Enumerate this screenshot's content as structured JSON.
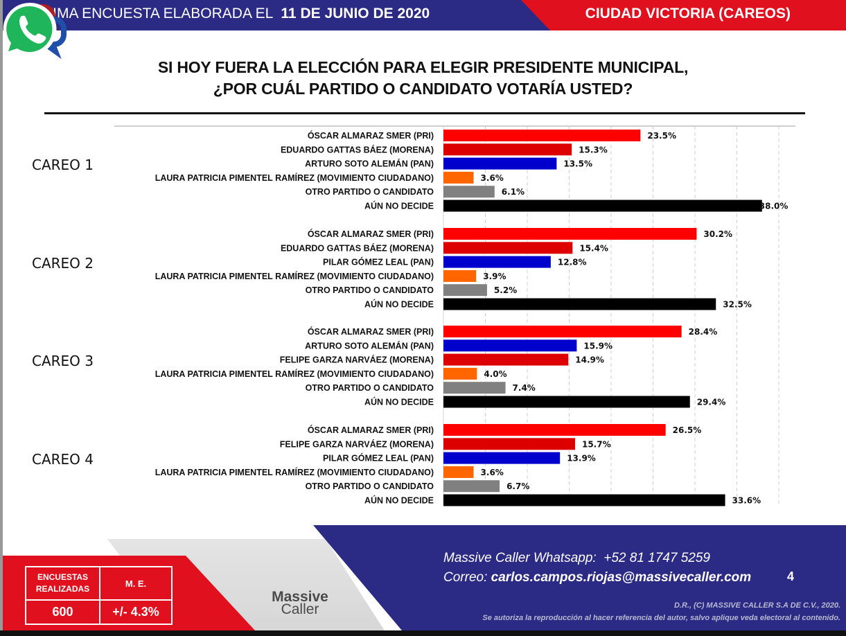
{
  "header": {
    "survey_prefix": "ÚLTIMA ENCUESTA ELABORADA EL",
    "survey_date": "11 DE JUNIO DE 2020",
    "location": "CIUDAD VICTORIA (CAREOS)",
    "colors": {
      "blue": "#2b2a84",
      "red": "#e0101e"
    }
  },
  "title": {
    "line1": "SI HOY FUERA LA ELECCIÓN PARA ELEGIR PRESIDENTE MUNICIPAL,",
    "line2": "¿POR CUÁL PARTIDO O CANDIDATO VOTARÍA USTED?"
  },
  "chart_data": {
    "type": "bar",
    "orientation": "horizontal",
    "title": "SI HOY FUERA LA ELECCIÓN PARA ELEGIR PRESIDENTE MUNICIPAL, ¿POR CUÁL PARTIDO O CANDIDATO VOTARÍA USTED?",
    "xlabel": "",
    "ylabel": "",
    "xlim": [
      0,
      42
    ],
    "grid": true,
    "grid_step": 5,
    "unit": "%",
    "party_colors": {
      "PRI": "#ff0000",
      "MORENA": "#dd0000",
      "PAN": "#0000cc",
      "MC": "#ff6600",
      "OTRO": "#808080",
      "NO_DECIDE": "#000000"
    },
    "groups": [
      {
        "name": "CAREO 1",
        "items": [
          {
            "label": "ÓSCAR ALMARAZ SMER (PRI)",
            "party": "PRI",
            "value": 23.5,
            "display": "23.5%"
          },
          {
            "label": "EDUARDO GATTAS BÁEZ (MORENA)",
            "party": "MORENA",
            "value": 15.3,
            "display": "15.3%"
          },
          {
            "label": "ARTURO SOTO ALEMÁN (PAN)",
            "party": "PAN",
            "value": 13.5,
            "display": "13.5%"
          },
          {
            "label": "LAURA PATRICIA PIMENTEL RAMÍREZ (MOVIMIENTO CIUDADANO)",
            "party": "MC",
            "value": 3.6,
            "display": "3.6%"
          },
          {
            "label": "OTRO PARTIDO O CANDIDATO",
            "party": "OTRO",
            "value": 6.1,
            "display": "6.1%"
          },
          {
            "label": "AÚN NO DECIDE",
            "party": "NO_DECIDE",
            "value": 38.0,
            "display": "38.0%"
          }
        ]
      },
      {
        "name": "CAREO 2",
        "items": [
          {
            "label": "ÓSCAR ALMARAZ SMER (PRI)",
            "party": "PRI",
            "value": 30.2,
            "display": "30.2%"
          },
          {
            "label": "EDUARDO GATTAS BÁEZ (MORENA)",
            "party": "MORENA",
            "value": 15.4,
            "display": "15.4%"
          },
          {
            "label": "PILAR GÓMEZ LEAL (PAN)",
            "party": "PAN",
            "value": 12.8,
            "display": "12.8%"
          },
          {
            "label": "LAURA PATRICIA PIMENTEL RAMÍREZ (MOVIMIENTO CIUDADANO)",
            "party": "MC",
            "value": 3.9,
            "display": "3.9%"
          },
          {
            "label": "OTRO PARTIDO O CANDIDATO",
            "party": "OTRO",
            "value": 5.2,
            "display": "5.2%"
          },
          {
            "label": "AÚN NO DECIDE",
            "party": "NO_DECIDE",
            "value": 32.5,
            "display": "32.5%"
          }
        ]
      },
      {
        "name": "CAREO 3",
        "items": [
          {
            "label": "ÓSCAR ALMARAZ SMER (PRI)",
            "party": "PRI",
            "value": 28.4,
            "display": "28.4%"
          },
          {
            "label": "ARTURO SOTO ALEMÁN (PAN)",
            "party": "PAN",
            "value": 15.9,
            "display": "15.9%"
          },
          {
            "label": "FELIPE GARZA NARVÁEZ (MORENA)",
            "party": "MORENA",
            "value": 14.9,
            "display": "14.9%"
          },
          {
            "label": "LAURA PATRICIA PIMENTEL RAMÍREZ (MOVIMIENTO CIUDADANO)",
            "party": "MC",
            "value": 4.0,
            "display": "4.0%"
          },
          {
            "label": "OTRO PARTIDO O CANDIDATO",
            "party": "OTRO",
            "value": 7.4,
            "display": "7.4%"
          },
          {
            "label": "AÚN NO DECIDE",
            "party": "NO_DECIDE",
            "value": 29.4,
            "display": "29.4%"
          }
        ]
      },
      {
        "name": "CAREO 4",
        "items": [
          {
            "label": "ÓSCAR ALMARAZ SMER (PRI)",
            "party": "PRI",
            "value": 26.5,
            "display": "26.5%"
          },
          {
            "label": "FELIPE GARZA NARVÁEZ (MORENA)",
            "party": "MORENA",
            "value": 15.7,
            "display": "15.7%"
          },
          {
            "label": "PILAR GÓMEZ LEAL (PAN)",
            "party": "PAN",
            "value": 13.9,
            "display": "13.9%"
          },
          {
            "label": "LAURA PATRICIA PIMENTEL RAMÍREZ (MOVIMIENTO CIUDADANO)",
            "party": "MC",
            "value": 3.6,
            "display": "3.6%"
          },
          {
            "label": "OTRO PARTIDO O CANDIDATO",
            "party": "OTRO",
            "value": 6.7,
            "display": "6.7%"
          },
          {
            "label": "AÚN NO DECIDE",
            "party": "NO_DECIDE",
            "value": 33.6,
            "display": "33.6%"
          }
        ]
      }
    ]
  },
  "footer": {
    "stats": {
      "surveys_label": "ENCUESTAS REALIZADAS",
      "surveys_value": "600",
      "margin_label": "M. E.",
      "margin_value": "+/- 4.3%"
    },
    "logo": {
      "line1": "Massive",
      "line2": "Caller",
      "icon": "massive-caller-logo-icon"
    },
    "whatsapp_label": "Massive Caller Whatsapp:",
    "whatsapp_number": "+52  81 1747 5259",
    "email_label": "Correo:",
    "email": "carlos.campos.riojas@massivecaller.com",
    "page_number": "4",
    "copyright_line1": "D.R., (C) MASSIVE CALLER S.A DE C.V., 2020.",
    "copyright_line2": "Se autoriza la reproducción al hacer referencia del autor, salvo aplique veda electoral al contenido.",
    "whatsapp_icon": "whatsapp-icon"
  }
}
